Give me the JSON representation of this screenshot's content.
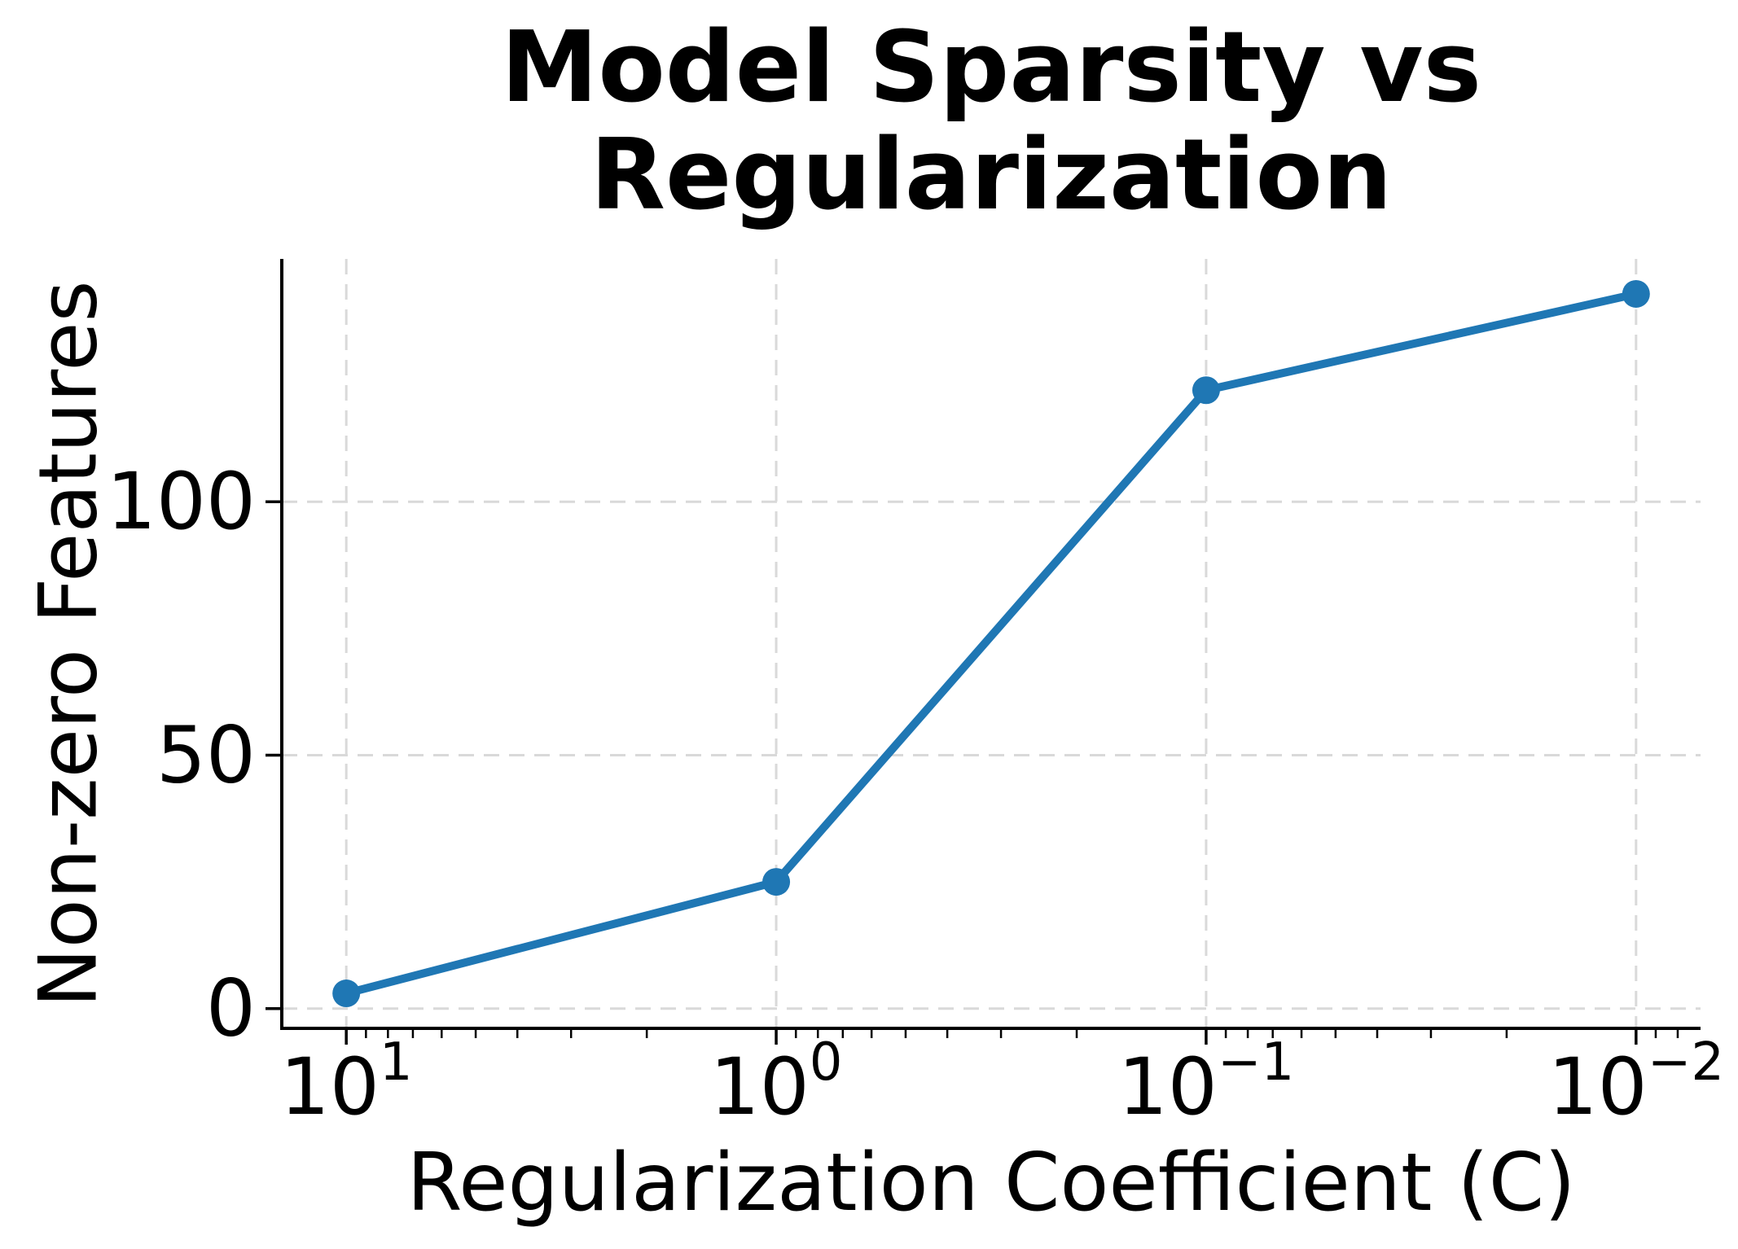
{
  "figure": {
    "background": "#ffffff"
  },
  "chart_data": {
    "type": "line",
    "title": "Model Sparsity vs Regularization",
    "title_lines": [
      "Model Sparsity vs",
      "Regularization"
    ],
    "xlabel": "Regularization Coefficient (C)",
    "ylabel": "Non-zero Features",
    "x_scale": "log",
    "x_axis_inverted": true,
    "x": [
      10,
      1,
      0.1,
      0.01
    ],
    "y": [
      3,
      25,
      122,
      141
    ],
    "x_tick_labels": [
      {
        "base": "10",
        "exp": "1"
      },
      {
        "base": "10",
        "exp": "0"
      },
      {
        "base": "10",
        "exp": "−1"
      },
      {
        "base": "10",
        "exp": "−2"
      }
    ],
    "y_ticks": [
      0,
      50,
      100
    ],
    "xlim_log10": [
      1.15,
      -2.15
    ],
    "ylim": [
      -3.9,
      147.9
    ],
    "grid": {
      "visible": true,
      "style": "dashed",
      "color": "#d9d9d9"
    },
    "line_color": "#1f77b4",
    "marker": "circle",
    "axis_color": "#000000",
    "legend": null
  }
}
